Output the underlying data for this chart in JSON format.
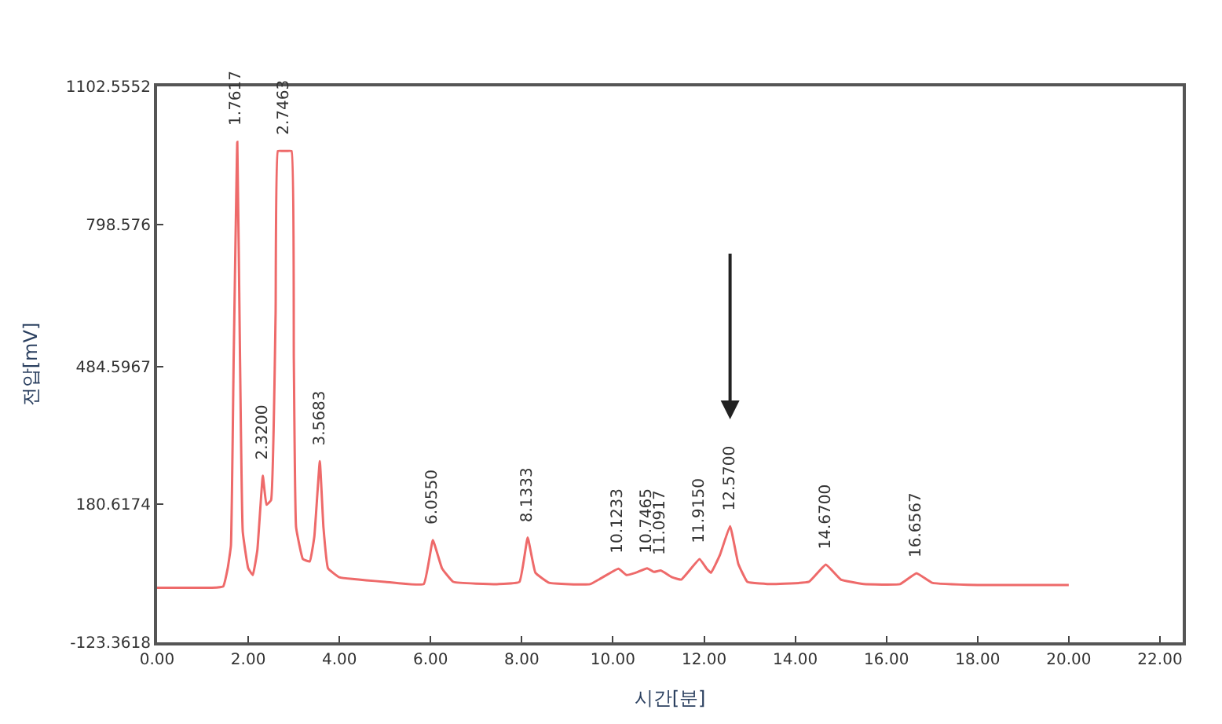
{
  "chart_data": {
    "type": "line",
    "xlabel": "시간[분]",
    "ylabel": "전압[mV]",
    "x": [
      0.0,
      1.2,
      1.45,
      1.55,
      1.62,
      1.68,
      1.76,
      1.82,
      1.88,
      2.0,
      2.1,
      2.2,
      2.32,
      2.4,
      2.5,
      2.6,
      2.65,
      2.75,
      2.85,
      2.95,
      3.0,
      3.05,
      3.2,
      3.35,
      3.45,
      3.57,
      3.65,
      3.75,
      4.0,
      5.0,
      5.85,
      6.05,
      6.25,
      6.5,
      7.5,
      7.95,
      8.13,
      8.3,
      8.6,
      9.5,
      10.12,
      10.3,
      10.5,
      10.75,
      10.9,
      11.05,
      11.3,
      11.5,
      11.9,
      12.05,
      12.15,
      12.35,
      12.57,
      12.75,
      12.95,
      13.5,
      14.3,
      14.67,
      15.0,
      15.5,
      16.3,
      16.66,
      17.0,
      18.0,
      20.0
    ],
    "series": [
      {
        "color": "#ee6a6a",
        "values": [
          -3,
          -3,
          0,
          40,
          90,
          500,
          980,
          500,
          120,
          40,
          25,
          80,
          244,
          180,
          190,
          600,
          960,
          960,
          960,
          960,
          500,
          130,
          60,
          55,
          110,
          276,
          130,
          40,
          20,
          10,
          5,
          102,
          40,
          10,
          5,
          10,
          108,
          30,
          8,
          5,
          39,
          25,
          30,
          40,
          32,
          35,
          20,
          15,
          60,
          40,
          30,
          70,
          133,
          50,
          10,
          5,
          10,
          48,
          15,
          5,
          5,
          29,
          8,
          3,
          3
        ]
      }
    ],
    "xlim": [
      0,
      22.5
    ],
    "xticks": [
      {
        "value": 0,
        "label": "0.00"
      },
      {
        "value": 2,
        "label": "2.00"
      },
      {
        "value": 4,
        "label": "4.00"
      },
      {
        "value": 6,
        "label": "6.00"
      },
      {
        "value": 8,
        "label": "8.00"
      },
      {
        "value": 10,
        "label": "10.00"
      },
      {
        "value": 12,
        "label": "12.00"
      },
      {
        "value": 14,
        "label": "14.00"
      },
      {
        "value": 16,
        "label": "16.00"
      },
      {
        "value": 18,
        "label": "18.00"
      },
      {
        "value": 20,
        "label": "20.00"
      },
      {
        "value": 22,
        "label": "22.00"
      }
    ],
    "ylim": [
      -123.3618,
      1102.5552
    ],
    "yticks": [
      -123.3618,
      180.6174,
      484.5967,
      798.576,
      1102.5552
    ],
    "annotations": [
      {
        "text": "1.7617",
        "x": 1.76,
        "y": 980
      },
      {
        "text": "2.3200",
        "x": 2.32,
        "y": 244
      },
      {
        "text": "2.7463",
        "x": 2.8,
        "y": 960
      },
      {
        "text": "3.5683",
        "x": 3.57,
        "y": 276
      },
      {
        "text": "6.0550",
        "x": 6.05,
        "y": 102
      },
      {
        "text": "8.1333",
        "x": 8.13,
        "y": 108
      },
      {
        "text": "10.1233",
        "x": 10.12,
        "y": 39
      },
      {
        "text": "10.7465",
        "x": 10.75,
        "y": 40
      },
      {
        "text": "11.0917",
        "x": 11.05,
        "y": 35
      },
      {
        "text": "11.9150",
        "x": 11.9,
        "y": 60
      },
      {
        "text": "12.5700",
        "x": 12.57,
        "y": 133
      },
      {
        "text": "14.6700",
        "x": 14.67,
        "y": 48
      },
      {
        "text": "16.6567",
        "x": 16.66,
        "y": 29
      }
    ]
  }
}
